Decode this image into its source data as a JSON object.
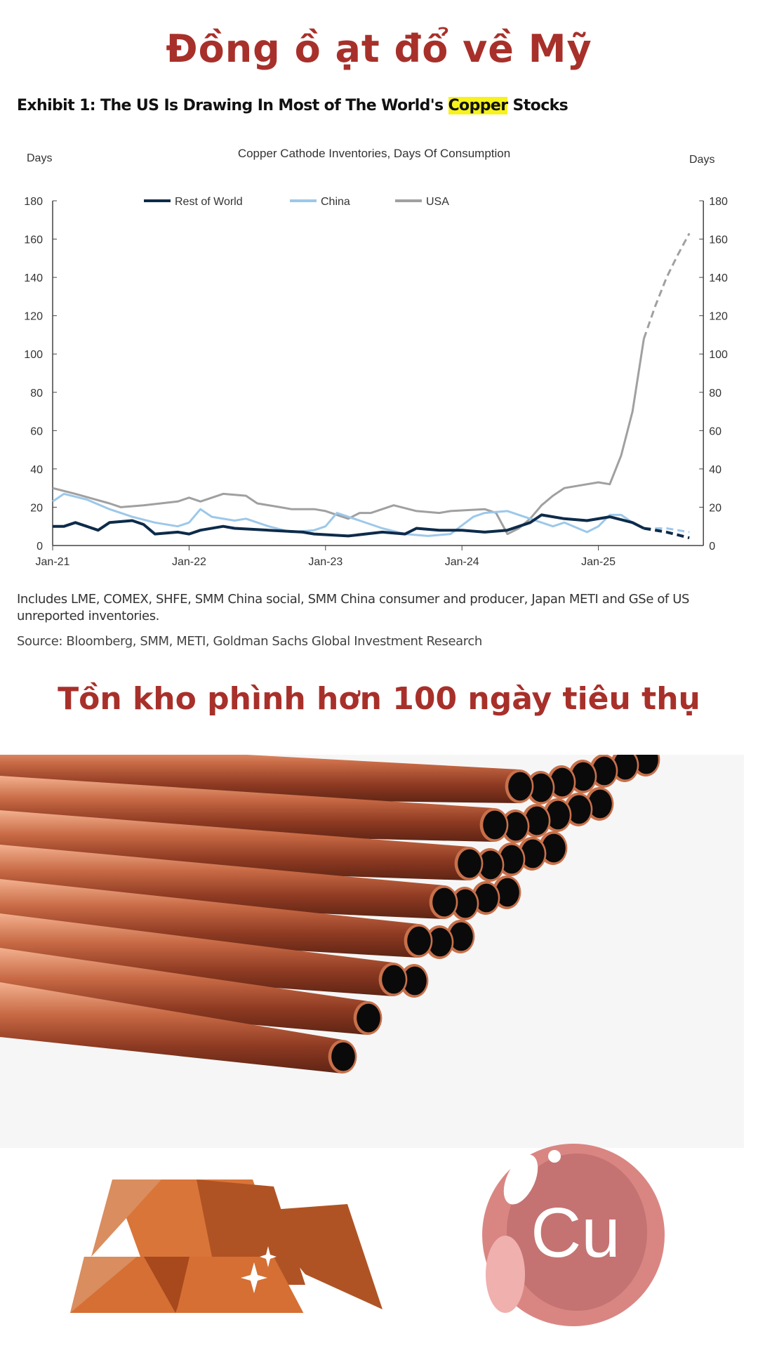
{
  "headline": "Đồng ồ ạt đổ về Mỹ",
  "exhibit": {
    "prefix": "Exhibit 1: The US Is Drawing In Most of The World's ",
    "highlight": "Copper",
    "suffix": " Stocks"
  },
  "notes": {
    "includes": "Includes LME, COMEX, SHFE, SMM China social, SMM China consumer and producer, Japan METI and GSe of US unreported inventories.",
    "source": "Source: Bloomberg, SMM, METI, Goldman Sachs Global Investment Research"
  },
  "subheadline": "Tồn kho phình hơn 100 ngày tiêu thụ",
  "illustrations": {
    "pipes": "copper-pipes-photo",
    "ingots": "copper-ingots-icon",
    "element_badge": "Cu"
  },
  "colors": {
    "headline": "#a8302a",
    "rest_of_world": "#0d2b4a",
    "china": "#9cc8ea",
    "usa": "#a0a0a0",
    "highlight": "#f6f21a"
  },
  "chart_data": {
    "type": "line",
    "title": "Copper Cathode Inventories, Days Of Consumption",
    "ylabel_left": "Days",
    "ylabel_right": "Days",
    "ylim": [
      0,
      180
    ],
    "yticks": [
      0,
      20,
      40,
      60,
      80,
      100,
      120,
      140,
      160,
      180
    ],
    "xticks": [
      "Jan-21",
      "Jan-22",
      "Jan-23",
      "Jan-24",
      "Jan-25"
    ],
    "xrange": [
      "2021-01",
      "2025-09"
    ],
    "legend_position": "top",
    "grid": false,
    "forecast_start": "2025-05",
    "series": [
      {
        "name": "Rest of World",
        "color": "#0d2b4a",
        "points": [
          [
            "2021-01",
            10
          ],
          [
            "2021-02",
            10
          ],
          [
            "2021-03",
            12
          ],
          [
            "2021-04",
            10
          ],
          [
            "2021-05",
            8
          ],
          [
            "2021-06",
            12
          ],
          [
            "2021-08",
            13
          ],
          [
            "2021-09",
            11
          ],
          [
            "2021-10",
            6
          ],
          [
            "2021-12",
            7
          ],
          [
            "2022-01",
            6
          ],
          [
            "2022-02",
            8
          ],
          [
            "2022-04",
            10
          ],
          [
            "2022-05",
            9
          ],
          [
            "2022-08",
            8
          ],
          [
            "2022-11",
            7
          ],
          [
            "2022-12",
            6
          ],
          [
            "2023-03",
            5
          ],
          [
            "2023-06",
            7
          ],
          [
            "2023-08",
            6
          ],
          [
            "2023-09",
            9
          ],
          [
            "2023-11",
            8
          ],
          [
            "2024-01",
            8
          ],
          [
            "2024-03",
            7
          ],
          [
            "2024-05",
            8
          ],
          [
            "2024-07",
            12
          ],
          [
            "2024-08",
            16
          ],
          [
            "2024-10",
            14
          ],
          [
            "2024-12",
            13
          ],
          [
            "2025-02",
            15
          ],
          [
            "2025-04",
            12
          ],
          [
            "2025-05",
            9
          ],
          [
            "2025-07",
            7
          ],
          [
            "2025-09",
            4
          ]
        ]
      },
      {
        "name": "China",
        "color": "#9cc8ea",
        "points": [
          [
            "2021-01",
            23
          ],
          [
            "2021-02",
            27
          ],
          [
            "2021-04",
            24
          ],
          [
            "2021-06",
            19
          ],
          [
            "2021-08",
            15
          ],
          [
            "2021-10",
            12
          ],
          [
            "2021-12",
            10
          ],
          [
            "2022-01",
            12
          ],
          [
            "2022-02",
            19
          ],
          [
            "2022-03",
            15
          ],
          [
            "2022-05",
            13
          ],
          [
            "2022-06",
            14
          ],
          [
            "2022-08",
            10
          ],
          [
            "2022-10",
            7
          ],
          [
            "2022-12",
            8
          ],
          [
            "2023-01",
            10
          ],
          [
            "2023-02",
            17
          ],
          [
            "2023-04",
            13
          ],
          [
            "2023-06",
            9
          ],
          [
            "2023-08",
            6
          ],
          [
            "2023-10",
            5
          ],
          [
            "2023-12",
            6
          ],
          [
            "2024-02",
            15
          ],
          [
            "2024-03",
            17
          ],
          [
            "2024-05",
            18
          ],
          [
            "2024-07",
            14
          ],
          [
            "2024-09",
            10
          ],
          [
            "2024-10",
            12
          ],
          [
            "2024-12",
            7
          ],
          [
            "2025-01",
            10
          ],
          [
            "2025-02",
            16
          ],
          [
            "2025-03",
            16
          ],
          [
            "2025-04",
            12
          ],
          [
            "2025-05",
            9
          ],
          [
            "2025-07",
            9
          ],
          [
            "2025-09",
            7
          ]
        ]
      },
      {
        "name": "USA",
        "color": "#a0a0a0",
        "points": [
          [
            "2021-01",
            30
          ],
          [
            "2021-03",
            27
          ],
          [
            "2021-06",
            22
          ],
          [
            "2021-07",
            20
          ],
          [
            "2021-09",
            21
          ],
          [
            "2021-12",
            23
          ],
          [
            "2022-01",
            25
          ],
          [
            "2022-02",
            23
          ],
          [
            "2022-04",
            27
          ],
          [
            "2022-06",
            26
          ],
          [
            "2022-07",
            22
          ],
          [
            "2022-09",
            20
          ],
          [
            "2022-10",
            19
          ],
          [
            "2022-12",
            19
          ],
          [
            "2023-01",
            18
          ],
          [
            "2023-02",
            16
          ],
          [
            "2023-03",
            14
          ],
          [
            "2023-04",
            17
          ],
          [
            "2023-05",
            17
          ],
          [
            "2023-07",
            21
          ],
          [
            "2023-09",
            18
          ],
          [
            "2023-11",
            17
          ],
          [
            "2023-12",
            18
          ],
          [
            "2024-03",
            19
          ],
          [
            "2024-04",
            17
          ],
          [
            "2024-05",
            6
          ],
          [
            "2024-06",
            9
          ],
          [
            "2024-07",
            14
          ],
          [
            "2024-08",
            21
          ],
          [
            "2024-09",
            26
          ],
          [
            "2024-10",
            30
          ],
          [
            "2024-12",
            32
          ],
          [
            "2025-01",
            33
          ],
          [
            "2025-02",
            32
          ],
          [
            "2025-03",
            47
          ],
          [
            "2025-04",
            70
          ],
          [
            "2025-05",
            108
          ],
          [
            "2025-06",
            125
          ],
          [
            "2025-07",
            140
          ],
          [
            "2025-08",
            152
          ],
          [
            "2025-09",
            163
          ]
        ]
      }
    ]
  }
}
